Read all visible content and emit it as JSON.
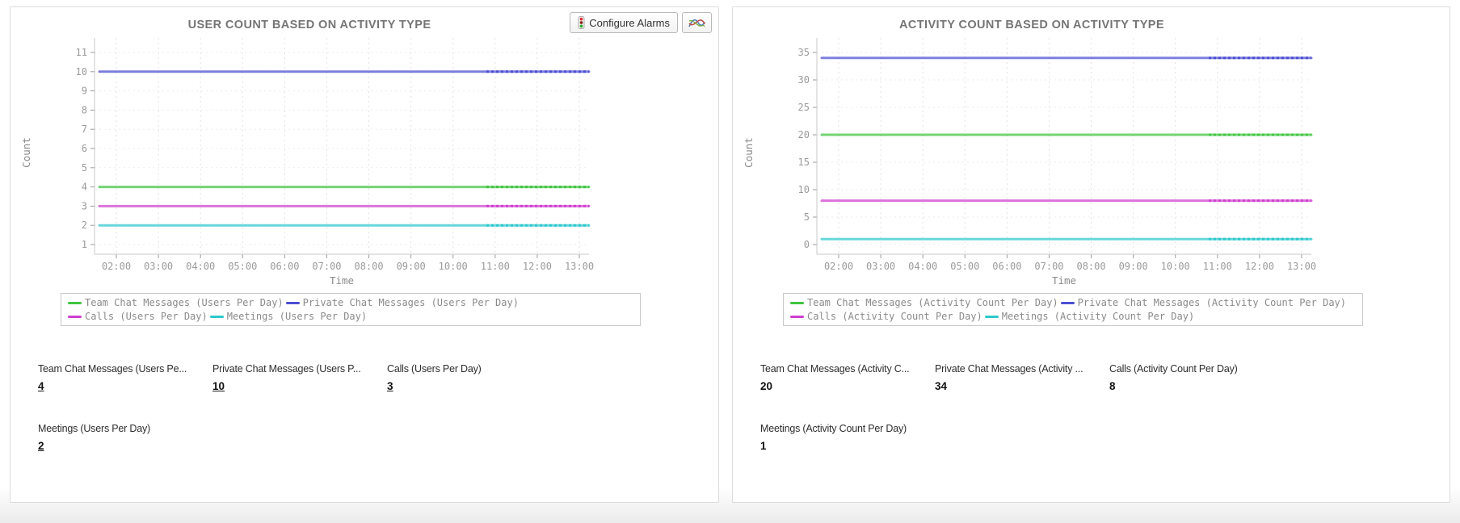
{
  "buttons": {
    "configure_alarms_label": "Configure Alarms"
  },
  "chart_data": [
    {
      "type": "line",
      "title": "USER COUNT BASED ON ACTIVITY TYPE",
      "xlabel": "Time",
      "ylabel": "Count",
      "x_ticks": [
        "02:00",
        "03:00",
        "04:00",
        "05:00",
        "06:00",
        "07:00",
        "08:00",
        "09:00",
        "10:00",
        "11:00",
        "12:00",
        "13:00"
      ],
      "y_ticks": [
        1,
        2,
        3,
        4,
        5,
        6,
        7,
        8,
        9,
        10,
        11
      ],
      "ylim": [
        1,
        11
      ],
      "grid": true,
      "legend_position": "bottom",
      "series": [
        {
          "name": "Team Chat Messages (Users Per Day)",
          "color": "#3fc53f",
          "value": 4
        },
        {
          "name": "Private Chat Messages (Users Per Day)",
          "color": "#4c4fd2",
          "value": 10
        },
        {
          "name": "Calls (Users Per Day)",
          "color": "#cf3fcf",
          "value": 3
        },
        {
          "name": "Meetings (Users Per Day)",
          "color": "#2cc8cd",
          "value": 2
        }
      ]
    },
    {
      "type": "line",
      "title": "ACTIVITY COUNT BASED ON ACTIVITY TYPE",
      "xlabel": "Time",
      "ylabel": "Count",
      "x_ticks": [
        "02:00",
        "03:00",
        "04:00",
        "05:00",
        "06:00",
        "07:00",
        "08:00",
        "09:00",
        "10:00",
        "11:00",
        "12:00",
        "13:00"
      ],
      "y_ticks": [
        0,
        5,
        10,
        15,
        20,
        25,
        30,
        35
      ],
      "ylim": [
        0,
        35
      ],
      "grid": true,
      "legend_position": "bottom",
      "series": [
        {
          "name": "Team Chat Messages (Activity Count Per Day)",
          "color": "#3fc53f",
          "value": 20
        },
        {
          "name": "Private Chat Messages (Activity Count Per Day)",
          "color": "#4c4fd2",
          "value": 34
        },
        {
          "name": "Calls (Activity Count Per Day)",
          "color": "#cf3fcf",
          "value": 8
        },
        {
          "name": "Meetings (Activity Count Per Day)",
          "color": "#2cc8cd",
          "value": 1
        }
      ]
    }
  ],
  "panels": [
    {
      "stats": [
        {
          "label": "Team Chat Messages (Users Pe...",
          "value": "4"
        },
        {
          "label": "Private Chat Messages (Users P...",
          "value": "10"
        },
        {
          "label": "Calls (Users Per Day)",
          "value": "3"
        },
        {
          "label": "Meetings (Users Per Day)",
          "value": "2"
        }
      ]
    },
    {
      "stats": [
        {
          "label": "Team Chat Messages (Activity C...",
          "value": "20"
        },
        {
          "label": "Private Chat Messages (Activity ...",
          "value": "34"
        },
        {
          "label": "Calls (Activity Count Per Day)",
          "value": "8"
        },
        {
          "label": "Meetings (Activity Count Per Day)",
          "value": "1"
        }
      ]
    }
  ]
}
